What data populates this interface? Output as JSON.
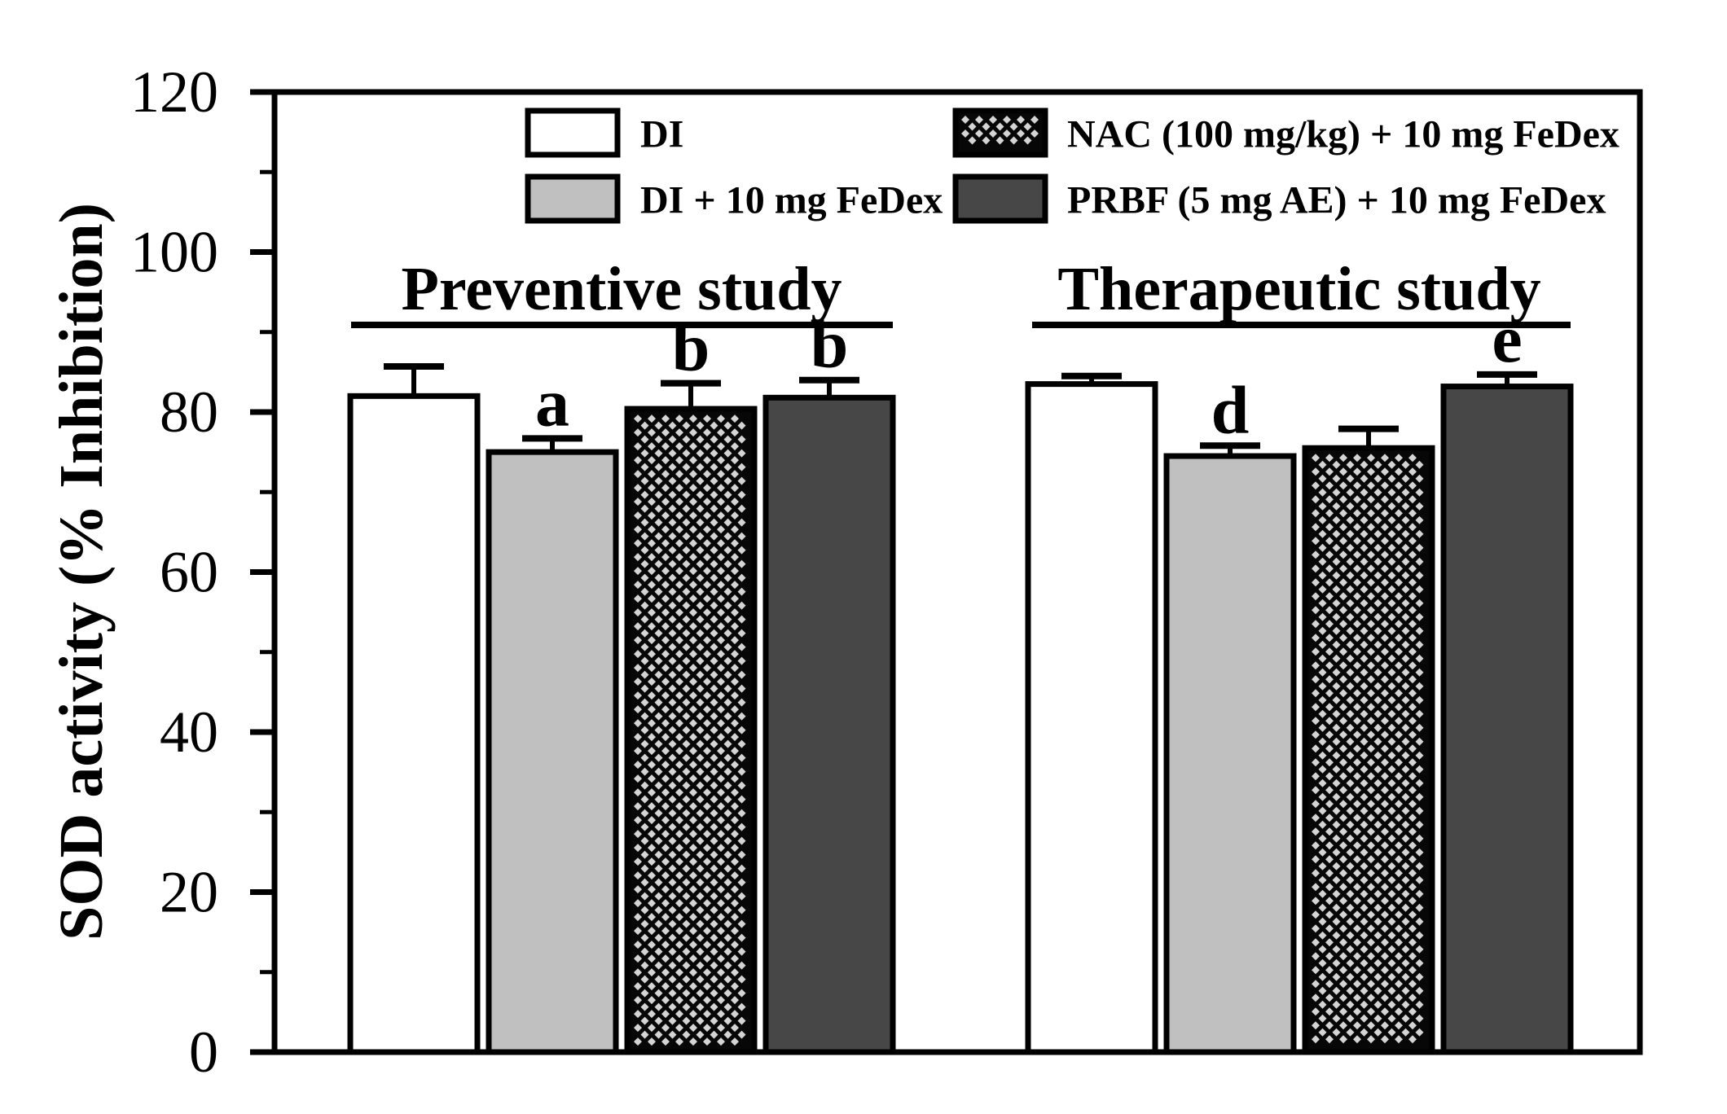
{
  "figure": {
    "kind": "scientific bar chart",
    "background": "#ffffff",
    "ink_color": "#000000"
  },
  "legend": {
    "position": "top-inside",
    "items": [
      {
        "label": "DI",
        "swatch": "white-box",
        "fill": "#ffffff"
      },
      {
        "label": "DI + 10 mg FeDex",
        "swatch": "light-gray-box",
        "fill": "#c0c0c0"
      },
      {
        "label": "NAC (100 mg/kg) + 10 mg FeDex",
        "swatch": "diamond-pattern-box",
        "fill": "#070707",
        "pattern_dot_color": "#d4d4d4"
      },
      {
        "label": "PRBF (5 mg AE) + 10 mg FeDex",
        "swatch": "dark-gray-box",
        "fill": "#474747"
      }
    ]
  },
  "chart_data": {
    "type": "bar",
    "title": "",
    "xlabel": "",
    "ylabel": "SOD activity (% Inhibition)",
    "ylim": [
      0,
      120
    ],
    "yticks": [
      0,
      20,
      40,
      60,
      80,
      100,
      120
    ],
    "ymajor": 20,
    "yminor": 10,
    "grid": false,
    "error_bars": "upper only, capped",
    "series": [
      {
        "name": "DI",
        "fill": "#ffffff",
        "pattern": "none"
      },
      {
        "name": "DI + 10 mg FeDex",
        "fill": "#c0c0c0",
        "pattern": "none"
      },
      {
        "name": "NAC (100 mg/kg) + 10 mg FeDex",
        "fill": "#070707",
        "pattern": "diamond",
        "pattern_color": "#d4d4d4"
      },
      {
        "name": "PRBF (5 mg AE) + 10 mg FeDex",
        "fill": "#474747",
        "pattern": "none"
      }
    ],
    "groups": [
      {
        "label": "Preventive study",
        "bars": [
          {
            "series": "DI",
            "value": 82.0,
            "error": 3.7,
            "sig": ""
          },
          {
            "series": "DI + 10 mg FeDex",
            "value": 75.0,
            "error": 1.7,
            "sig": "a"
          },
          {
            "series": "NAC (100 mg/kg) + 10 mg FeDex",
            "value": 80.4,
            "error": 3.2,
            "sig": "b"
          },
          {
            "series": "PRBF (5 mg AE) + 10 mg FeDex",
            "value": 81.8,
            "error": 2.2,
            "sig": "b"
          }
        ]
      },
      {
        "label": "Therapeutic study",
        "bars": [
          {
            "series": "DI",
            "value": 83.5,
            "error": 1.0,
            "sig": ""
          },
          {
            "series": "DI + 10 mg FeDex",
            "value": 74.5,
            "error": 1.3,
            "sig": "d"
          },
          {
            "series": "NAC (100 mg/kg) + 10 mg FeDex",
            "value": 75.5,
            "error": 2.4,
            "sig": ""
          },
          {
            "series": "PRBF (5 mg AE) + 10 mg FeDex",
            "value": 83.2,
            "error": 1.5,
            "sig": "e"
          }
        ]
      }
    ]
  }
}
